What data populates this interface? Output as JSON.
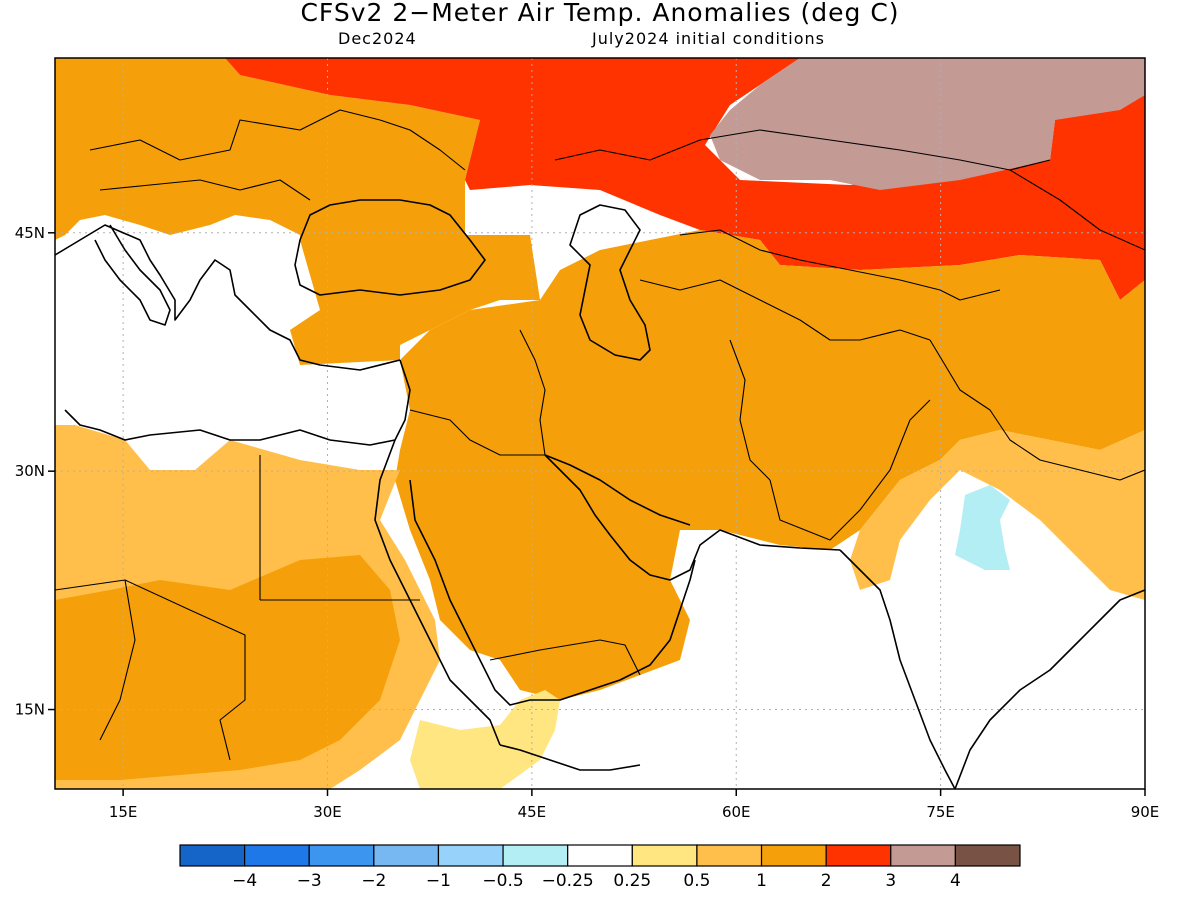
{
  "title": "CFSv2 2−Meter Air Temp. Anomalies (deg C)",
  "subtitle_left": "Dec2024",
  "subtitle_right": "July2024 initial conditions",
  "map": {
    "extent": {
      "lon_min": 10,
      "lon_max": 90,
      "lat_min": 10,
      "lat_max": 56
    },
    "lon_ticks": [
      {
        "value": 15,
        "label": "15E"
      },
      {
        "value": 30,
        "label": "30E"
      },
      {
        "value": 45,
        "label": "45E"
      },
      {
        "value": 60,
        "label": "60E"
      },
      {
        "value": 75,
        "label": "75E"
      },
      {
        "value": 90,
        "label": "90E"
      }
    ],
    "lat_ticks": [
      {
        "value": 45,
        "label": "45N"
      },
      {
        "value": 30,
        "label": "30N"
      },
      {
        "value": 15,
        "label": "15N"
      }
    ],
    "regions": [
      {
        "name": "europe-balkans",
        "level": 1,
        "color": "#F5A00A"
      },
      {
        "name": "south-russia-kazakhstan",
        "level": 2,
        "color": "#FF3300"
      },
      {
        "name": "siberia",
        "level": 3,
        "color": "#C49A94"
      },
      {
        "name": "middle-east-central-asia",
        "level": 1,
        "color": "#F5A00A"
      },
      {
        "name": "north-africa",
        "level": 0.5,
        "color": "#FFBF4A"
      },
      {
        "name": "sahel",
        "level": 0.5,
        "color": "#FFBF4A"
      },
      {
        "name": "central-africa",
        "level": 1,
        "color": "#F5A00A"
      },
      {
        "name": "india-north",
        "level": 0.5,
        "color": "#FFBF4A"
      },
      {
        "name": "india-cool",
        "level": -0.5,
        "color": "#B4EEF5"
      },
      {
        "name": "horn-of-africa",
        "level": 0.25,
        "color": "#FFE680"
      }
    ]
  },
  "colorbar": {
    "colors": [
      "#1565C8",
      "#1E78E8",
      "#3C96F0",
      "#78B8F2",
      "#96D2FA",
      "#B4EEF5",
      "#FFFFFF",
      "#FFE680",
      "#FFBF4A",
      "#F5A00A",
      "#FF3300",
      "#C49A94",
      "#785244"
    ],
    "labels": [
      "−4",
      "−3",
      "−2",
      "−1",
      "−0.5",
      "−0.25",
      "0.25",
      "0.5",
      "1",
      "2",
      "3",
      "4"
    ]
  }
}
